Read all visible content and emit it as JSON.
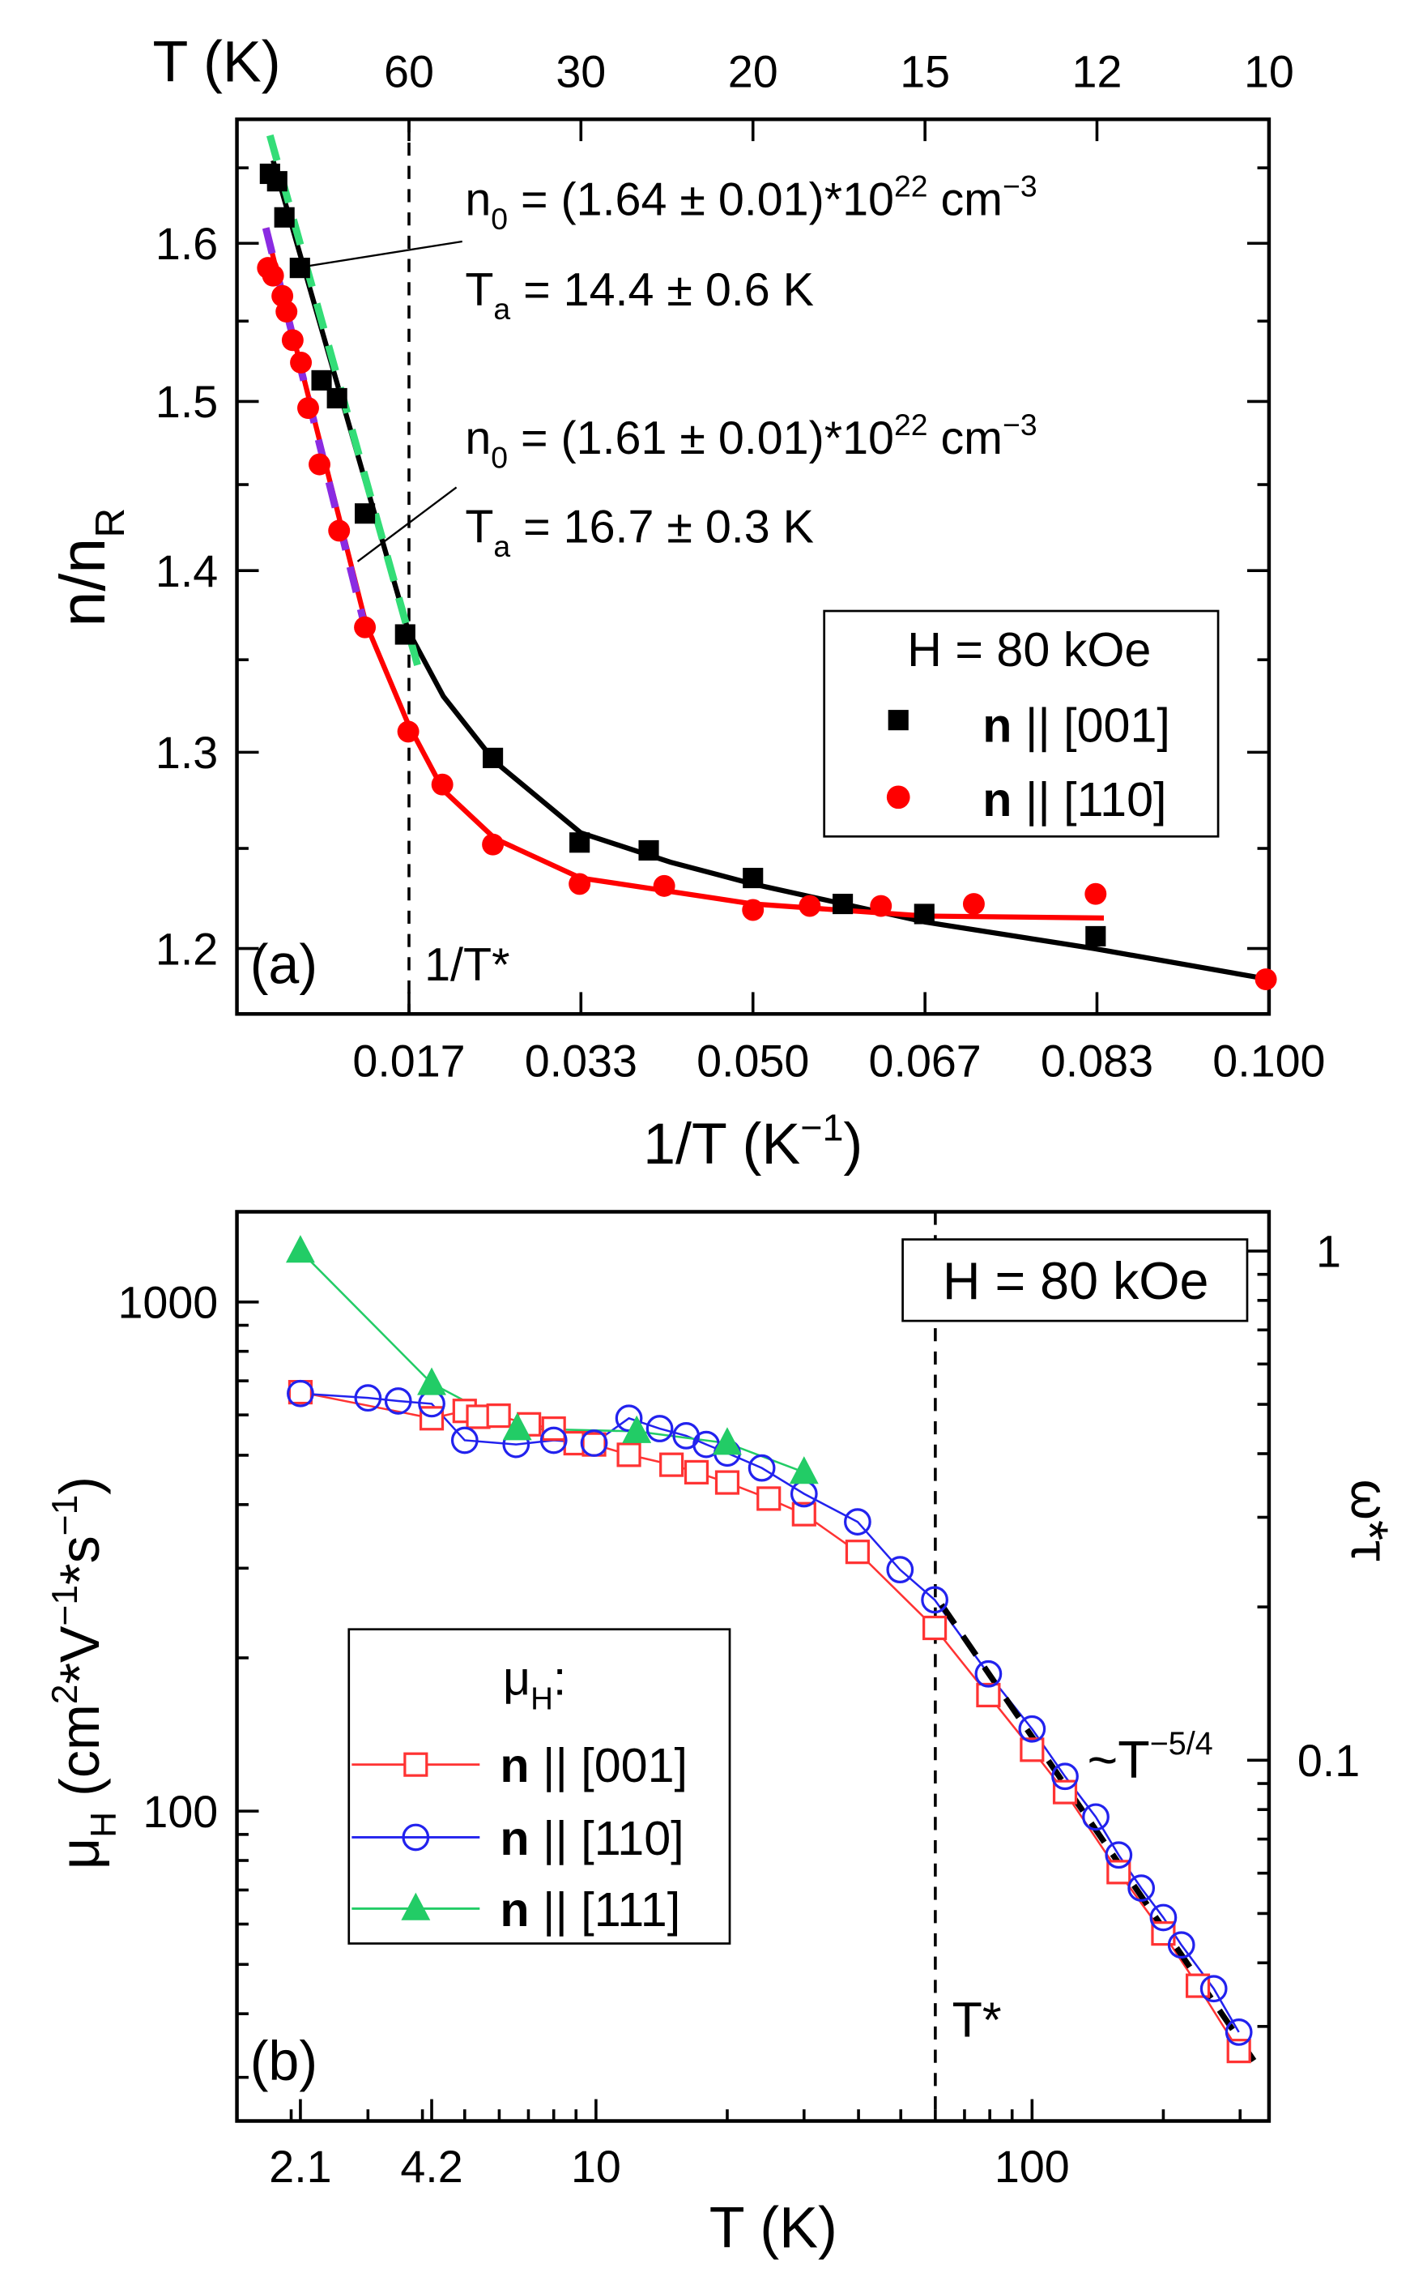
{
  "chart_data": [
    {
      "type": "scatter",
      "panel_label": "(a)",
      "title": "",
      "xlabel_parts": [
        {
          "t": "1/T (K"
        },
        {
          "t": "−1",
          "s": "sup"
        },
        {
          "t": ")"
        }
      ],
      "ylabel_parts": [
        {
          "t": "n/n"
        },
        {
          "t": "R",
          "s": "sub"
        }
      ],
      "top_xlabel": "T (K)",
      "xlim": [
        0,
        0.1
      ],
      "ylim": [
        1.168,
        1.683
      ],
      "yscale": "log",
      "grid": false,
      "xticks": [
        {
          "value": 0.01667,
          "label": "0.017"
        },
        {
          "value": 0.03333,
          "label": "0.033"
        },
        {
          "value": 0.05,
          "label": "0.050"
        },
        {
          "value": 0.06667,
          "label": "0.067"
        },
        {
          "value": 0.08333,
          "label": "0.083"
        },
        {
          "value": 0.1,
          "label": "0.100"
        }
      ],
      "top_xticks": [
        {
          "value": 0.01667,
          "label": "60"
        },
        {
          "value": 0.03333,
          "label": "30"
        },
        {
          "value": 0.05,
          "label": "20"
        },
        {
          "value": 0.06667,
          "label": "15"
        },
        {
          "value": 0.08333,
          "label": "12"
        },
        {
          "value": 0.1,
          "label": "10"
        }
      ],
      "yticks": [
        {
          "value": 1.2,
          "label": "1.2"
        },
        {
          "value": 1.3,
          "label": "1.3"
        },
        {
          "value": 1.4,
          "label": "1.4"
        },
        {
          "value": 1.5,
          "label": "1.5"
        },
        {
          "value": 1.6,
          "label": "1.6"
        }
      ],
      "vline": {
        "value": 0.01667,
        "label": "1/T*"
      },
      "legend": {
        "placement": "center-right",
        "title": "H = 80 kOe",
        "entries": [
          {
            "bold": "n",
            "text": " || [001]",
            "marker": "filled-square",
            "color": "#000000"
          },
          {
            "bold": "n",
            "text": " || [110]",
            "marker": "filled-circle",
            "color": "#ff0000"
          }
        ]
      },
      "series": [
        {
          "name": "n || [001]",
          "marker": "filled-square",
          "color": "#000000",
          "x": [
            0.0032,
            0.0039,
            0.0046,
            0.0061,
            0.0082,
            0.0097,
            0.0124,
            0.0163,
            0.0248,
            0.0332,
            0.0399,
            0.05,
            0.0587,
            0.0666,
            0.0832
          ],
          "y": [
            1.646,
            1.641,
            1.617,
            1.584,
            1.513,
            1.502,
            1.433,
            1.364,
            1.297,
            1.253,
            1.249,
            1.235,
            1.222,
            1.217,
            1.206
          ]
        },
        {
          "name": "n || [110]",
          "marker": "filled-circle",
          "color": "#ff0000",
          "x": [
            0.003,
            0.0035,
            0.0044,
            0.0048,
            0.0054,
            0.0062,
            0.0069,
            0.008,
            0.0099,
            0.0124,
            0.0166,
            0.0199,
            0.0248,
            0.0332,
            0.0414,
            0.05,
            0.0555,
            0.0624,
            0.0714,
            0.0832,
            0.0997
          ],
          "y": [
            1.584,
            1.579,
            1.566,
            1.556,
            1.538,
            1.524,
            1.496,
            1.462,
            1.423,
            1.368,
            1.311,
            1.283,
            1.252,
            1.232,
            1.231,
            1.219,
            1.221,
            1.221,
            1.222,
            1.227,
            1.185
          ]
        }
      ],
      "fits": [
        {
          "name": "fit [001]",
          "style": "solid",
          "color": "#000000",
          "x": [
            0.0035,
            0.0166,
            0.02,
            0.025,
            0.0333,
            0.042,
            0.05,
            0.0667,
            0.083,
            0.1
          ],
          "y": [
            1.655,
            1.366,
            1.33,
            1.295,
            1.258,
            1.243,
            1.232,
            1.213,
            1.2,
            1.185
          ]
        },
        {
          "name": "fit [110]",
          "style": "solid",
          "color": "#ff0000",
          "x": [
            0.0028,
            0.0125,
            0.0166,
            0.02,
            0.025,
            0.0333,
            0.05,
            0.0667,
            0.084
          ],
          "y": [
            1.61,
            1.37,
            1.315,
            1.28,
            1.255,
            1.235,
            1.222,
            1.216,
            1.215
          ]
        },
        {
          "name": "activation fit [001]",
          "style": "dashed",
          "color": "#33dd77",
          "x": [
            0.0032,
            0.0176
          ],
          "y": [
            1.672,
            1.345
          ]
        },
        {
          "name": "activation fit [110]",
          "style": "dashed",
          "color": "#8a2be2",
          "x": [
            0.0028,
            0.0125
          ],
          "y": [
            1.61,
            1.366
          ]
        }
      ],
      "annotations": [
        {
          "n": "n",
          "n_sub": "0",
          "body": " = (1.64 ± 0.01)*10",
          "exp": "22",
          "unit": " cm",
          "unit_exp": "−3",
          "t": "T",
          "t_sub": "a",
          "t_body": " = 14.4 ± 0.6 K"
        },
        {
          "n": "n",
          "n_sub": "0",
          "body": " = (1.61 ± 0.01)*10",
          "exp": "22",
          "unit": " cm",
          "unit_exp": "−3",
          "t": "T",
          "t_sub": "a",
          "t_body": " = 16.7 ± 0.3 K"
        }
      ]
    },
    {
      "type": "line",
      "panel_label": "(b)",
      "title": "",
      "xlabel": "T (K)",
      "ylabel_parts": [
        {
          "t": "μ"
        },
        {
          "t": "H",
          "s": "sub"
        },
        {
          "t": " (cm"
        },
        {
          "t": "2",
          "s": "sup"
        },
        {
          "t": "*V"
        },
        {
          "t": "−1",
          "s": "sup"
        },
        {
          "t": "*s"
        },
        {
          "t": "−1",
          "s": "sup"
        },
        {
          "t": ")"
        }
      ],
      "y2label": "ω*τ",
      "xscale": "log",
      "yscale": "log",
      "xlim": [
        1.5,
        349
      ],
      "ylim": [
        24.6,
        1503
      ],
      "y2lim": [
        0.0195,
        1.19
      ],
      "grid": false,
      "xticks": [
        {
          "value": 2.1,
          "label": "2.1"
        },
        {
          "value": 4.2,
          "label": "4.2"
        },
        {
          "value": 10,
          "label": "10"
        },
        {
          "value": 100,
          "label": "100"
        }
      ],
      "yticks": [
        {
          "value": 100,
          "label": "100"
        },
        {
          "value": 1000,
          "label": "1000"
        }
      ],
      "y2ticks": [
        {
          "value": 0.1,
          "label": "0.1"
        },
        {
          "value": 1,
          "label": "1"
        }
      ],
      "vline": {
        "value": 60,
        "label": "T*"
      },
      "box_label": "H = 80 kOe",
      "legend": {
        "placement": "bottom-left",
        "title_parts": [
          {
            "t": "μ"
          },
          {
            "t": "H",
            "s": "sub"
          },
          {
            "t": ":"
          }
        ],
        "entries": [
          {
            "bold": "n",
            "text": " || [001]",
            "marker": "open-square",
            "color": "#ff3333"
          },
          {
            "bold": "n",
            "text": " || [110]",
            "marker": "open-circle",
            "color": "#2222ee"
          },
          {
            "bold": "n",
            "text": " || [111]",
            "marker": "filled-triangle",
            "color": "#22cc66"
          }
        ]
      },
      "series": [
        {
          "name": "n || [001]",
          "marker": "open-square",
          "color": "#ff3333",
          "x": [
            2.1,
            4.2,
            5.0,
            5.37,
            5.98,
            7.02,
            8.0,
            8.98,
            9.9,
            11.9,
            14.9,
            17.0,
            20.0,
            24.9,
            30.0,
            39.8,
            59.8,
            79.4,
            100,
            119,
            158,
            200,
            240,
            298
          ],
          "y": [
            665,
            591,
            611,
            595,
            598,
            575,
            564,
            528,
            525,
            501,
            479,
            463,
            442,
            411,
            383,
            323,
            229,
            169,
            132,
            109,
            75.9,
            57.5,
            45.4,
            33.8
          ]
        },
        {
          "name": "n || [110]",
          "marker": "open-circle",
          "color": "#2222ee",
          "x": [
            2.1,
            3.0,
            3.52,
            4.2,
            5.0,
            6.56,
            8.0,
            9.9,
            11.9,
            14.0,
            16.1,
            17.9,
            20.0,
            24.0,
            30.0,
            39.8,
            49.8,
            59.8,
            79.4,
            100,
            119,
            140,
            158,
            178,
            200,
            220,
            261,
            298
          ],
          "y": [
            661,
            648,
            639,
            631,
            535,
            525,
            535,
            528,
            591,
            564,
            546,
            525,
            505,
            472,
            420,
            370,
            298,
            260,
            186,
            145,
            117,
            97.4,
            82,
            70.6,
            61.8,
            54.6,
            44.8,
            36.8
          ]
        },
        {
          "name": "n || [111]",
          "marker": "filled-triangle",
          "color": "#22cc66",
          "x": [
            2.1,
            4.2,
            6.6,
            12.4,
            20.0,
            30.0
          ],
          "y": [
            1259,
            692,
            564,
            557,
            528,
            463
          ]
        }
      ],
      "powerlaw": {
        "label_base": "~T",
        "label_exp": "−5/4",
        "exponent": -1.25,
        "mu_at_60K": 265,
        "T_range": [
          62,
          330
        ],
        "color": "#000000"
      }
    }
  ]
}
